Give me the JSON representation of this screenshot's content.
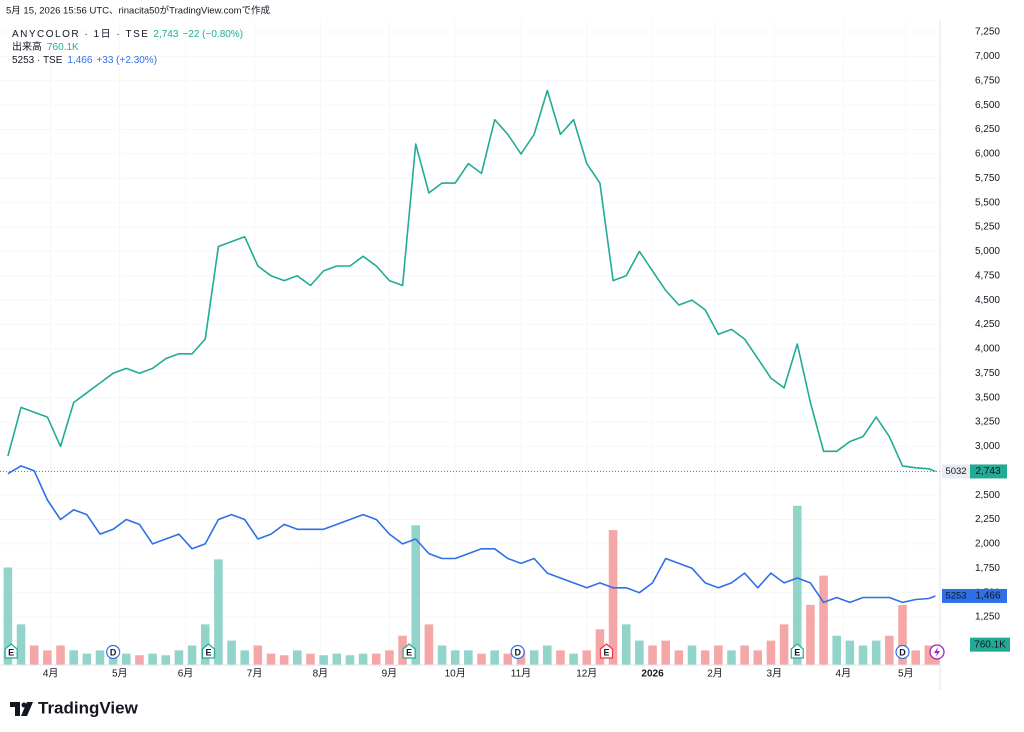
{
  "caption": "5月 15, 2026 15:56 UTC、rinacita50がTradingView.comで作成",
  "footer": {
    "brand": "TradingView"
  },
  "chart_data": {
    "type": "line",
    "x": [
      0,
      4,
      8,
      12,
      16,
      20,
      24,
      28,
      32,
      36,
      40,
      44,
      48,
      52,
      56,
      60,
      64,
      68,
      72,
      76,
      80,
      84,
      88,
      92,
      96,
      100,
      104,
      108,
      112,
      116,
      120,
      124,
      128,
      132,
      136,
      140,
      144,
      148,
      152,
      156,
      160,
      164,
      168,
      172,
      176,
      180,
      184,
      188,
      192,
      196,
      200,
      204,
      208,
      212,
      216,
      220,
      224,
      228,
      232,
      236,
      240,
      244,
      248,
      252,
      256,
      260,
      264,
      268,
      272,
      276,
      280,
      282
    ],
    "xlim": [
      -2.4,
      283.4
    ],
    "xticks": [
      {
        "value": 13,
        "label": "4月"
      },
      {
        "value": 34,
        "label": "5月"
      },
      {
        "value": 54,
        "label": "6月"
      },
      {
        "value": 75,
        "label": "7月"
      },
      {
        "value": 95,
        "label": "8月"
      },
      {
        "value": 116,
        "label": "9月"
      },
      {
        "value": 136,
        "label": "10月"
      },
      {
        "value": 156,
        "label": "11月"
      },
      {
        "value": 176,
        "label": "12月"
      },
      {
        "value": 196,
        "label": "2026"
      },
      {
        "value": 215,
        "label": "2月"
      },
      {
        "value": 233,
        "label": "3月"
      },
      {
        "value": 254,
        "label": "4月"
      },
      {
        "value": 273,
        "label": "5月"
      }
    ],
    "ylim": [
      758,
      7373
    ],
    "yticks": [
      {
        "value": 1250,
        "label": "1,250"
      },
      {
        "value": 1500,
        "label": "1,500"
      },
      {
        "value": 1750,
        "label": "1,750"
      },
      {
        "value": 2000,
        "label": "2,000"
      },
      {
        "value": 2250,
        "label": "2,250"
      },
      {
        "value": 2500,
        "label": "2,500"
      },
      {
        "value": 2750,
        "label": "2,750"
      },
      {
        "value": 3000,
        "label": "3,000"
      },
      {
        "value": 3250,
        "label": "3,250"
      },
      {
        "value": 3500,
        "label": "3,500"
      },
      {
        "value": 3750,
        "label": "3,750"
      },
      {
        "value": 4000,
        "label": "4,000"
      },
      {
        "value": 4250,
        "label": "4,250"
      },
      {
        "value": 4500,
        "label": "4,500"
      },
      {
        "value": 4750,
        "label": "4,750"
      },
      {
        "value": 5000,
        "label": "5,000"
      },
      {
        "value": 5250,
        "label": "5,250"
      },
      {
        "value": 5500,
        "label": "5,500"
      },
      {
        "value": 5750,
        "label": "5,750"
      },
      {
        "value": 6000,
        "label": "6,000"
      },
      {
        "value": 6250,
        "label": "6,250"
      },
      {
        "value": 6500,
        "label": "6,500"
      },
      {
        "value": 6750,
        "label": "6,750"
      },
      {
        "value": 7000,
        "label": "7,000"
      },
      {
        "value": 7250,
        "label": "7,250"
      }
    ],
    "grid": true,
    "series": [
      {
        "name": "ANYCOLOR · 1日 · TSE",
        "color": "#22ab94",
        "legend_value": "2,743",
        "legend_change": "−22 (−0.80%)",
        "values": [
          2900,
          3400,
          3350,
          3300,
          3000,
          3450,
          3550,
          3650,
          3750,
          3800,
          3750,
          3800,
          3900,
          3950,
          3950,
          4100,
          5050,
          5100,
          5150,
          4850,
          4750,
          4700,
          4750,
          4650,
          4800,
          4850,
          4850,
          4950,
          4850,
          4700,
          4650,
          6100,
          5600,
          5700,
          5700,
          5900,
          5800,
          6350,
          6200,
          6000,
          6200,
          6650,
          6200,
          6350,
          5900,
          5700,
          4700,
          4750,
          5000,
          4800,
          4600,
          4450,
          4500,
          4400,
          4150,
          4200,
          4100,
          3900,
          3700,
          3600,
          4050,
          3450,
          2950,
          2950,
          3050,
          3100,
          3300,
          3100,
          2800,
          2780,
          2770,
          2743
        ]
      },
      {
        "name": "5253 · TSE",
        "color": "#2f6fe8",
        "legend_value": "1,466",
        "legend_change": "+33 (+2.30%)",
        "values": [
          2720,
          2800,
          2750,
          2450,
          2250,
          2350,
          2300,
          2100,
          2150,
          2250,
          2200,
          2000,
          2050,
          2100,
          1950,
          2000,
          2250,
          2300,
          2250,
          2050,
          2100,
          2200,
          2150,
          2150,
          2150,
          2200,
          2250,
          2300,
          2250,
          2100,
          2000,
          2050,
          1900,
          1850,
          1850,
          1900,
          1950,
          1950,
          1850,
          1800,
          1850,
          1700,
          1650,
          1600,
          1550,
          1600,
          1550,
          1550,
          1500,
          1600,
          1850,
          1800,
          1750,
          1600,
          1550,
          1600,
          1700,
          1550,
          1700,
          1600,
          1650,
          1600,
          1400,
          1450,
          1400,
          1450,
          1450,
          1450,
          1400,
          1430,
          1440,
          1466
        ]
      }
    ],
    "volume": {
      "name": "出来高",
      "legend_value": "760.1K",
      "ylim": [
        0,
        16000
      ],
      "up_color": "#92d3ca",
      "down_color": "#f5a6a6",
      "values": [
        6000,
        2500,
        1200,
        900,
        1200,
        900,
        700,
        900,
        600,
        700,
        600,
        700,
        600,
        900,
        1200,
        2500,
        6500,
        1500,
        900,
        1200,
        700,
        600,
        900,
        700,
        600,
        700,
        600,
        700,
        700,
        900,
        1800,
        8600,
        2500,
        1200,
        900,
        900,
        700,
        900,
        700,
        900,
        900,
        1200,
        900,
        700,
        900,
        2200,
        8300,
        2500,
        1500,
        1200,
        1500,
        900,
        1200,
        900,
        1200,
        900,
        1200,
        900,
        1500,
        2500,
        9800,
        3700,
        5500,
        1800,
        1500,
        1200,
        1500,
        1800,
        3700,
        900,
        1200,
        760.1
      ],
      "badge": {
        "value": 760.1,
        "label": "760.1K",
        "color": "#22ab94"
      }
    },
    "badges": [
      {
        "symbol": "5032",
        "value": 2743,
        "label": "2,743",
        "color": "#22ab94"
      },
      {
        "symbol": "5253",
        "value": 1466,
        "label": "1,466",
        "color": "#2f6fe8"
      }
    ],
    "events": [
      {
        "x": 1,
        "label": "E",
        "color": "#22ab94"
      },
      {
        "x": 32,
        "label": "D",
        "color": "#2f6fe8"
      },
      {
        "x": 61,
        "label": "E",
        "color": "#22ab94"
      },
      {
        "x": 122,
        "label": "E",
        "color": "#22ab94"
      },
      {
        "x": 155,
        "label": "D",
        "color": "#2f6fe8"
      },
      {
        "x": 182,
        "label": "E",
        "color": "#f23645"
      },
      {
        "x": 240,
        "label": "E",
        "color": "#22ab94"
      },
      {
        "x": 272,
        "label": "D",
        "color": "#2f6fe8"
      }
    ]
  }
}
